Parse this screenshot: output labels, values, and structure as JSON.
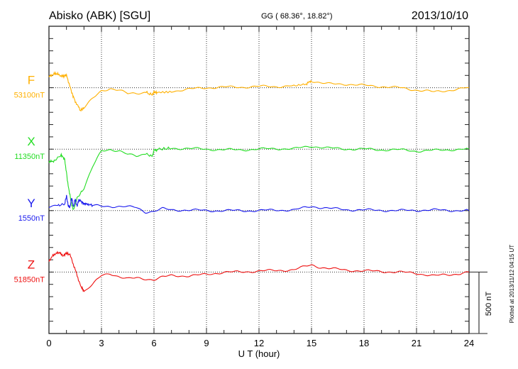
{
  "header": {
    "title": "Abisko (ABK)  [SGU]",
    "coords": "GG ( 68.36°,  18.82°)",
    "date": "2013/10/10"
  },
  "footer": {
    "plotted": "Plotted at 2013/11/12 04:15 UT",
    "scale_label": "500 nT"
  },
  "chart_data": {
    "type": "line",
    "title": "Abisko (ABK)  [SGU]",
    "xlabel": "U T (hour)",
    "xlim": [
      0,
      24
    ],
    "xticks": [
      "0",
      "3",
      "6",
      "9",
      "12",
      "15",
      "18",
      "21",
      "24"
    ],
    "grid": true,
    "y_tick_interval_nT": 100,
    "scale_bar_nT": 500,
    "series": [
      {
        "name": "F",
        "baseline_label": "53100nT",
        "baseline": 53100,
        "color": "#ffb000",
        "x": [
          0,
          0.3,
          0.5,
          0.8,
          1.0,
          1.3,
          1.5,
          1.8,
          2.0,
          2.5,
          3.0,
          3.5,
          4.0,
          4.5,
          5.0,
          5.5,
          5.9,
          6.0,
          6.2,
          7,
          8,
          9,
          10,
          11,
          12,
          13,
          14,
          14.7,
          15,
          15.5,
          16,
          17,
          18,
          19,
          20,
          20.5,
          21,
          21.5,
          22,
          23,
          24
        ],
        "dev": [
          87,
          115,
          110,
          90,
          105,
          -40,
          -110,
          -185,
          -165,
          -90,
          -25,
          -5,
          -20,
          -50,
          -45,
          -35,
          -60,
          -35,
          -40,
          -28,
          -12,
          0,
          5,
          5,
          10,
          10,
          15,
          30,
          58,
          40,
          30,
          30,
          18,
          10,
          0,
          -10,
          -18,
          -25,
          -35,
          -18,
          0
        ]
      },
      {
        "name": "X",
        "baseline_label": "11350nT",
        "baseline": 11350,
        "color": "#22dd22",
        "x": [
          0,
          0.3,
          0.7,
          0.9,
          1.1,
          1.3,
          1.4,
          1.6,
          2.0,
          2.5,
          3.0,
          3.5,
          4.0,
          4.5,
          5.0,
          5.5,
          5.9,
          6.0,
          6.3,
          7,
          8,
          9,
          10,
          11,
          12,
          13,
          14,
          15,
          16,
          17,
          18,
          19,
          20,
          21,
          22,
          23,
          24
        ],
        "dev": [
          -104,
          -95,
          -46,
          -85,
          -300,
          -450,
          -496,
          -400,
          -320,
          -145,
          -12,
          0,
          -15,
          -45,
          -55,
          -35,
          -60,
          -10,
          0,
          8,
          5,
          0,
          -5,
          -5,
          0,
          5,
          3,
          25,
          8,
          2,
          0,
          -5,
          -5,
          -15,
          -10,
          -3,
          0
        ]
      },
      {
        "name": "Y",
        "baseline_label": "1550nT",
        "baseline": 1550,
        "color": "#1a1aee",
        "x": [
          0,
          0.5,
          0.9,
          1.0,
          1.1,
          1.2,
          1.3,
          1.4,
          1.5,
          1.6,
          1.7,
          1.8,
          2.0,
          2.2,
          2.5,
          3,
          4,
          5,
          5.5,
          6,
          6.5,
          7,
          8,
          9,
          10,
          11,
          12,
          13,
          14,
          15,
          16,
          17,
          18,
          19,
          20,
          21,
          22,
          23,
          24
        ],
        "dev": [
          35,
          40,
          55,
          120,
          40,
          25,
          105,
          30,
          95,
          35,
          85,
          80,
          55,
          55,
          40,
          35,
          35,
          25,
          -10,
          -5,
          15,
          5,
          5,
          0,
          0,
          0,
          0,
          5,
          5,
          35,
          18,
          8,
          5,
          3,
          0,
          3,
          5,
          2,
          0
        ]
      },
      {
        "name": "Z",
        "baseline_label": "51850nT",
        "baseline": 51850,
        "color": "#ee1111",
        "x": [
          0,
          0.3,
          0.6,
          0.8,
          1.0,
          1.2,
          1.5,
          1.8,
          2.0,
          2.5,
          3.0,
          3.5,
          4.0,
          4.5,
          5.0,
          5.5,
          6.0,
          6.5,
          7,
          8,
          9,
          10,
          11,
          12,
          13,
          14,
          15,
          15.5,
          16,
          17,
          18,
          19,
          20,
          21,
          22,
          23,
          24
        ],
        "dev": [
          92,
          145,
          160,
          130,
          155,
          140,
          20,
          -110,
          -156,
          -100,
          -30,
          -12,
          -35,
          -55,
          -50,
          -55,
          -60,
          -40,
          -30,
          -30,
          -20,
          0,
          0,
          10,
          12,
          20,
          58,
          40,
          30,
          15,
          10,
          5,
          0,
          -10,
          -30,
          -20,
          0
        ]
      }
    ]
  }
}
